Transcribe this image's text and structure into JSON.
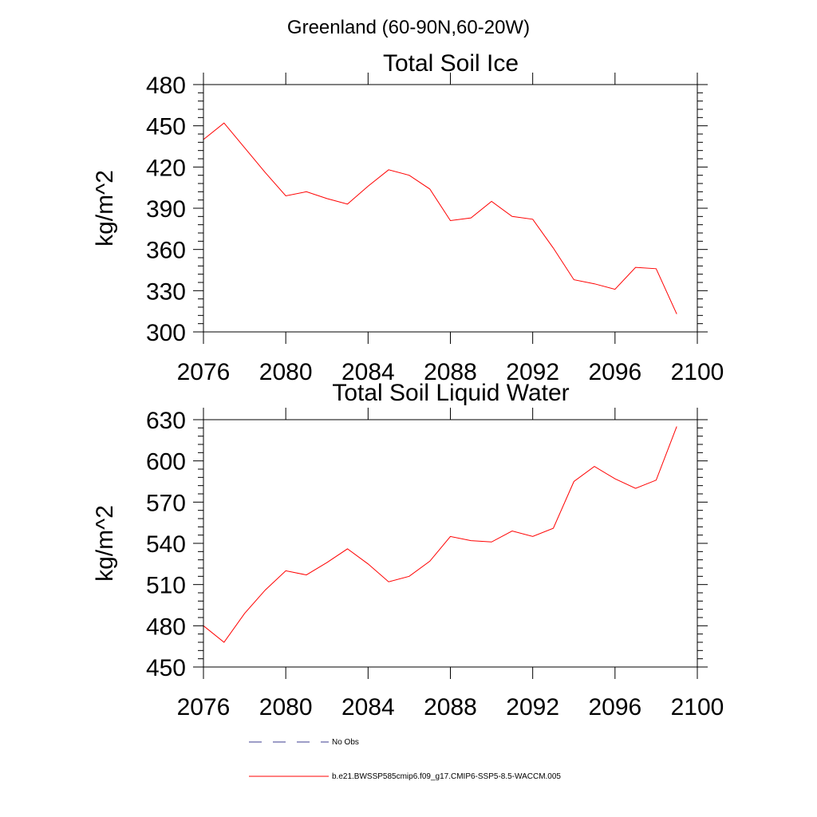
{
  "figure_title": "Greenland (60-90N,60-20W)",
  "chart_data": [
    {
      "type": "line",
      "title": "Total Soil Ice",
      "xlabel": "",
      "ylabel": "kg/m^2",
      "xlim": [
        2076,
        2100
      ],
      "ylim": [
        300,
        480
      ],
      "xticks": [
        2076,
        2080,
        2084,
        2088,
        2092,
        2096,
        2100
      ],
      "yticks": [
        300,
        330,
        360,
        390,
        420,
        450,
        480
      ],
      "grid": false,
      "series": [
        {
          "color": "#ff0000",
          "x": [
            2076,
            2077,
            2078,
            2079,
            2080,
            2081,
            2082,
            2083,
            2084,
            2085,
            2086,
            2087,
            2088,
            2089,
            2090,
            2091,
            2092,
            2093,
            2094,
            2095,
            2096,
            2097,
            2098,
            2099
          ],
          "values": [
            440,
            452,
            434,
            416,
            399,
            402,
            397,
            393,
            406,
            418,
            414,
            404,
            381,
            383,
            395,
            384,
            382,
            361,
            338,
            335,
            331,
            347,
            346,
            313
          ]
        }
      ]
    },
    {
      "type": "line",
      "title": "Total Soil Liquid Water",
      "xlabel": "",
      "ylabel": "kg/m^2",
      "xlim": [
        2076,
        2100
      ],
      "ylim": [
        450,
        630
      ],
      "xticks": [
        2076,
        2080,
        2084,
        2088,
        2092,
        2096,
        2100
      ],
      "yticks": [
        450,
        480,
        510,
        540,
        570,
        600,
        630
      ],
      "grid": false,
      "series": [
        {
          "color": "#ff0000",
          "x": [
            2076,
            2077,
            2078,
            2079,
            2080,
            2081,
            2082,
            2083,
            2084,
            2085,
            2086,
            2087,
            2088,
            2089,
            2090,
            2091,
            2092,
            2093,
            2094,
            2095,
            2096,
            2097,
            2098,
            2099
          ],
          "values": [
            480,
            468,
            489,
            506,
            520,
            517,
            526,
            536,
            525,
            512,
            516,
            527,
            545,
            542,
            541,
            549,
            545,
            551,
            585,
            596,
            587,
            580,
            586,
            625
          ]
        }
      ]
    }
  ],
  "legend": [
    {
      "label": "No Obs",
      "style": "dashed",
      "color": "#3b3b8f"
    },
    {
      "label": "b.e21.BWSSP585cmip6.f09_g17.CMIP6-SSP5-8.5-WACCM.005",
      "style": "solid",
      "color": "#ff0000"
    }
  ]
}
